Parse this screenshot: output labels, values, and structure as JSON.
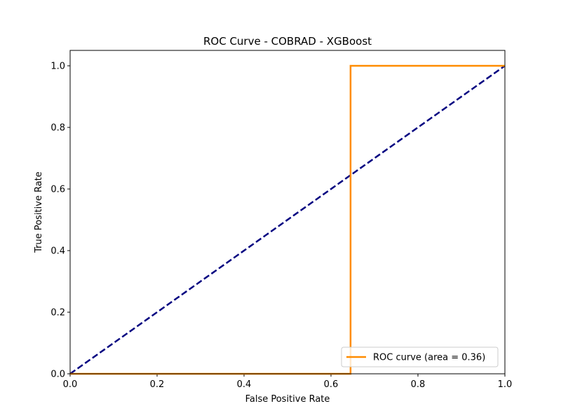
{
  "chart_data": {
    "type": "line",
    "title": "ROC Curve - COBRAD - XGBoost",
    "xlabel": "False Positive Rate",
    "ylabel": "True Positive Rate",
    "xlim": [
      0.0,
      1.0
    ],
    "ylim": [
      0.0,
      1.05
    ],
    "xticks": [
      "0.0",
      "0.2",
      "0.4",
      "0.6",
      "0.8",
      "1.0"
    ],
    "yticks": [
      "0.0",
      "0.2",
      "0.4",
      "0.6",
      "0.8",
      "1.0"
    ],
    "grid": false,
    "legend_position": "lower-right",
    "series": [
      {
        "name": "ROC curve (area = 0.36)",
        "color": "#ff8c00",
        "style": "solid",
        "x": [
          0.0,
          0.645,
          0.645,
          1.0
        ],
        "y": [
          0.0,
          0.0,
          1.0,
          1.0
        ]
      },
      {
        "color": "#000080",
        "style": "dashed",
        "x": [
          0.0,
          1.0
        ],
        "y": [
          0.0,
          1.0
        ]
      }
    ]
  }
}
